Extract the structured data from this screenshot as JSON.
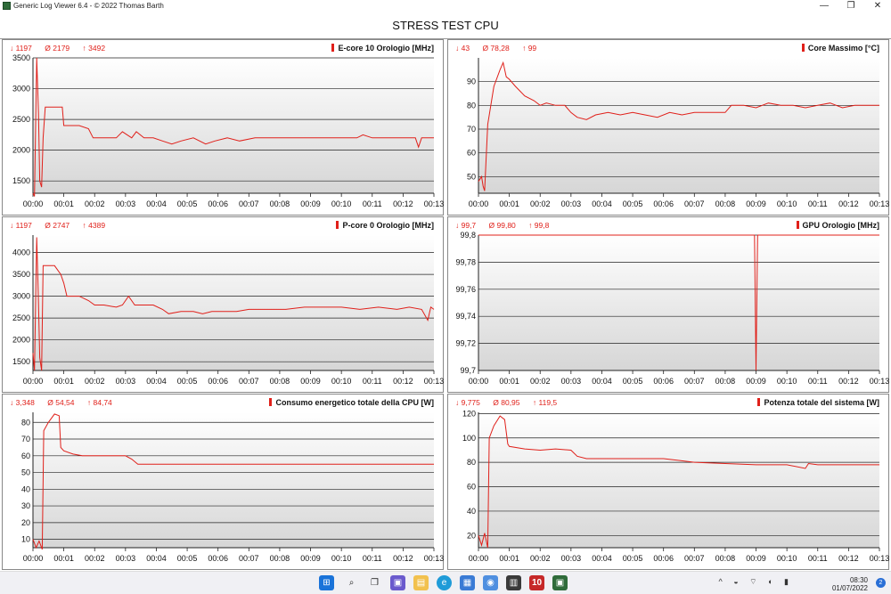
{
  "window": {
    "title": "Generic Log Viewer 6.4 - © 2022 Thomas Barth",
    "buttons": [
      "—",
      "❐",
      "✕"
    ]
  },
  "header": {
    "title": "STRESS TEST CPU"
  },
  "panels": [
    {
      "stats": {
        "min": "↓ 1197",
        "avg": "Ø  2179",
        "max": "↑ 3492"
      },
      "title": "E-core 10 Orologio [MHz]"
    },
    {
      "stats": {
        "min": "↓ 43",
        "avg": "Ø  78,28",
        "max": "↑ 99"
      },
      "title": "Core Massimo [°C]"
    },
    {
      "stats": {
        "min": "↓ 1197",
        "avg": "Ø  2747",
        "max": "↑ 4389"
      },
      "title": "P-core 0 Orologio [MHz]"
    },
    {
      "stats": {
        "min": "↓ 99,7",
        "avg": "Ø  99,80",
        "max": "↑ 99,8"
      },
      "title": "GPU Orologio [MHz]"
    },
    {
      "stats": {
        "min": "↓ 3,348",
        "avg": "Ø  54,54",
        "max": "↑ 84,74"
      },
      "title": "Consumo energetico totale della CPU [W]"
    },
    {
      "stats": {
        "min": "↓ 9,775",
        "avg": "Ø  80,95",
        "max": "↑ 119,5"
      },
      "title": "Potenza totale del sistema [W]"
    }
  ],
  "chart_data": [
    {
      "type": "line",
      "ylim": [
        1300,
        3500
      ],
      "yticks": [
        "3500",
        "3000",
        "2500",
        "2000",
        "1500"
      ],
      "ytick_values": [
        3500,
        3000,
        2500,
        2000,
        1500
      ],
      "xticks": [
        "00:00",
        "00:01",
        "00:02",
        "00:03",
        "00:04",
        "00:05",
        "00:06",
        "00:07",
        "00:08",
        "00:09",
        "00:10",
        "00:11",
        "00:12",
        "00:13"
      ],
      "series": [
        {
          "color": "#e0201a",
          "x": [
            0,
            0.05,
            0.12,
            0.18,
            0.22,
            0.28,
            0.33,
            0.4,
            0.45,
            0.5,
            0.7,
            0.95,
            1.0,
            1.5,
            1.8,
            1.95,
            2.2,
            2.7,
            2.9,
            3.2,
            3.35,
            3.6,
            3.9,
            4.2,
            4.5,
            4.8,
            5.2,
            5.6,
            5.9,
            6.3,
            6.7,
            7.2,
            7.6,
            8.2,
            9,
            10,
            10.5,
            10.7,
            11,
            12,
            12.4,
            12.5,
            12.6,
            13
          ],
          "y": [
            1300,
            1250,
            3500,
            2600,
            1500,
            1400,
            2200,
            2700,
            2700,
            2700,
            2700,
            2700,
            2400,
            2400,
            2350,
            2200,
            2200,
            2200,
            2300,
            2200,
            2300,
            2200,
            2200,
            2150,
            2100,
            2150,
            2200,
            2100,
            2150,
            2200,
            2150,
            2200,
            2200,
            2200,
            2200,
            2200,
            2200,
            2250,
            2200,
            2200,
            2200,
            2050,
            2200,
            2200
          ]
        }
      ]
    },
    {
      "type": "line",
      "ylim": [
        43,
        100
      ],
      "yticks": [
        "90",
        "80",
        "70",
        "60",
        "50"
      ],
      "ytick_values": [
        90,
        80,
        70,
        60,
        50
      ],
      "xticks": [
        "00:00",
        "00:01",
        "00:02",
        "00:03",
        "00:04",
        "00:05",
        "00:06",
        "00:07",
        "00:08",
        "00:09",
        "00:10",
        "00:11",
        "00:12",
        "00:13"
      ],
      "series": [
        {
          "color": "#e0201a",
          "x": [
            0,
            0.1,
            0.15,
            0.2,
            0.3,
            0.5,
            0.7,
            0.8,
            0.9,
            1.0,
            1.2,
            1.5,
            1.8,
            2.0,
            2.2,
            2.5,
            2.8,
            3.0,
            3.2,
            3.5,
            3.8,
            4.2,
            4.6,
            5.0,
            5.4,
            5.8,
            6.2,
            6.6,
            7.0,
            7.5,
            8.0,
            8.2,
            8.6,
            9.0,
            9.4,
            9.8,
            10.2,
            10.6,
            11.0,
            11.4,
            11.8,
            12.2,
            12.6,
            13
          ],
          "y": [
            48,
            50,
            46,
            44,
            72,
            88,
            95,
            98,
            92,
            91,
            88,
            84,
            82,
            80,
            81,
            80,
            80,
            77,
            75,
            74,
            76,
            77,
            76,
            77,
            76,
            75,
            77,
            76,
            77,
            77,
            77,
            80,
            80,
            79,
            81,
            80,
            80,
            79,
            80,
            81,
            79,
            80,
            80,
            80
          ]
        }
      ]
    },
    {
      "type": "line",
      "ylim": [
        1300,
        4400
      ],
      "yticks": [
        "4000",
        "3500",
        "3000",
        "2500",
        "2000",
        "1500"
      ],
      "ytick_values": [
        4000,
        3500,
        3000,
        2500,
        2000,
        1500
      ],
      "xticks": [
        "00:00",
        "00:01",
        "00:02",
        "00:03",
        "00:04",
        "00:05",
        "00:06",
        "00:07",
        "00:08",
        "00:09",
        "00:10",
        "00:11",
        "00:12",
        "00:13"
      ],
      "series": [
        {
          "color": "#e0201a",
          "x": [
            0,
            0.05,
            0.12,
            0.17,
            0.22,
            0.28,
            0.33,
            0.4,
            0.5,
            0.7,
            0.9,
            1.0,
            1.1,
            1.5,
            1.8,
            2.0,
            2.3,
            2.7,
            2.9,
            3.1,
            3.3,
            3.6,
            3.9,
            4.2,
            4.4,
            4.8,
            5.2,
            5.5,
            5.8,
            6.1,
            6.6,
            7.0,
            7.6,
            8.2,
            8.8,
            9.4,
            10,
            10.6,
            11.2,
            11.8,
            12.2,
            12.6,
            12.8,
            12.9,
            13
          ],
          "y": [
            1700,
            1300,
            4350,
            3100,
            1600,
            1300,
            3700,
            3700,
            3700,
            3700,
            3500,
            3300,
            3000,
            3000,
            2900,
            2800,
            2800,
            2750,
            2800,
            3000,
            2800,
            2800,
            2800,
            2700,
            2600,
            2650,
            2650,
            2600,
            2650,
            2650,
            2650,
            2700,
            2700,
            2700,
            2750,
            2750,
            2750,
            2700,
            2750,
            2700,
            2750,
            2700,
            2450,
            2750,
            2700
          ]
        }
      ]
    },
    {
      "type": "line",
      "ylim": [
        99.7,
        99.8
      ],
      "yticks": [
        "99,8",
        "99,78",
        "99,76",
        "99,74",
        "99,72",
        "99,7"
      ],
      "ytick_values": [
        99.8,
        99.78,
        99.76,
        99.74,
        99.72,
        99.7
      ],
      "xticks": [
        "00:00",
        "00:01",
        "00:02",
        "00:03",
        "00:04",
        "00:05",
        "00:06",
        "00:07",
        "00:08",
        "00:09",
        "00:10",
        "00:11",
        "00:12",
        "00:13"
      ],
      "series": [
        {
          "color": "#e0201a",
          "x": [
            0,
            8.95,
            9.0,
            9.05,
            13
          ],
          "y": [
            99.8,
            99.8,
            99.7,
            99.8,
            99.8
          ]
        }
      ]
    },
    {
      "type": "line",
      "ylim": [
        5,
        86
      ],
      "yticks": [
        "80",
        "70",
        "60",
        "50",
        "40",
        "30",
        "20",
        "10"
      ],
      "ytick_values": [
        80,
        70,
        60,
        50,
        40,
        30,
        20,
        10
      ],
      "xticks": [
        "00:00",
        "00:01",
        "00:02",
        "00:03",
        "00:04",
        "00:05",
        "00:06",
        "00:07",
        "00:08",
        "00:09",
        "00:10",
        "00:11",
        "00:12",
        "00:13"
      ],
      "series": [
        {
          "color": "#e0201a",
          "x": [
            0,
            0.1,
            0.2,
            0.3,
            0.35,
            0.5,
            0.7,
            0.85,
            0.9,
            1.0,
            1.3,
            1.6,
            2.0,
            2.5,
            3.0,
            3.2,
            3.4,
            4.0,
            5.0,
            6.0,
            7.0,
            8.0,
            9.0,
            10.0,
            11.0,
            12.0,
            13
          ],
          "y": [
            10,
            5,
            9,
            4,
            75,
            80,
            85,
            84,
            65,
            63,
            61,
            60,
            60,
            60,
            60,
            58,
            55,
            55,
            55,
            55,
            55,
            55,
            55,
            55,
            55,
            55,
            55
          ]
        }
      ]
    },
    {
      "type": "line",
      "ylim": [
        10,
        121
      ],
      "yticks": [
        "120",
        "100",
        "80",
        "60",
        "40",
        "20"
      ],
      "ytick_values": [
        120,
        100,
        80,
        60,
        40,
        20
      ],
      "xticks": [
        "00:00",
        "00:01",
        "00:02",
        "00:03",
        "00:04",
        "00:05",
        "00:06",
        "00:07",
        "00:08",
        "00:09",
        "00:10",
        "00:11",
        "00:12",
        "00:13"
      ],
      "series": [
        {
          "color": "#e0201a",
          "x": [
            0,
            0.1,
            0.2,
            0.3,
            0.35,
            0.5,
            0.7,
            0.85,
            0.95,
            1.0,
            1.5,
            2.0,
            2.5,
            3.0,
            3.2,
            3.5,
            4.0,
            5.0,
            6.0,
            7.0,
            8.0,
            9.0,
            9.5,
            10.0,
            10.6,
            10.7,
            11.0,
            12.0,
            13
          ],
          "y": [
            20,
            12,
            22,
            10,
            100,
            110,
            118,
            115,
            95,
            93,
            91,
            90,
            91,
            90,
            85,
            83,
            83,
            83,
            83,
            80,
            79,
            78,
            78,
            78,
            75,
            79,
            78,
            78,
            78
          ]
        }
      ]
    }
  ],
  "taskbar": {
    "time": "08:30",
    "date": "01/07/2022",
    "notifications": "2",
    "app_badge": "10"
  }
}
